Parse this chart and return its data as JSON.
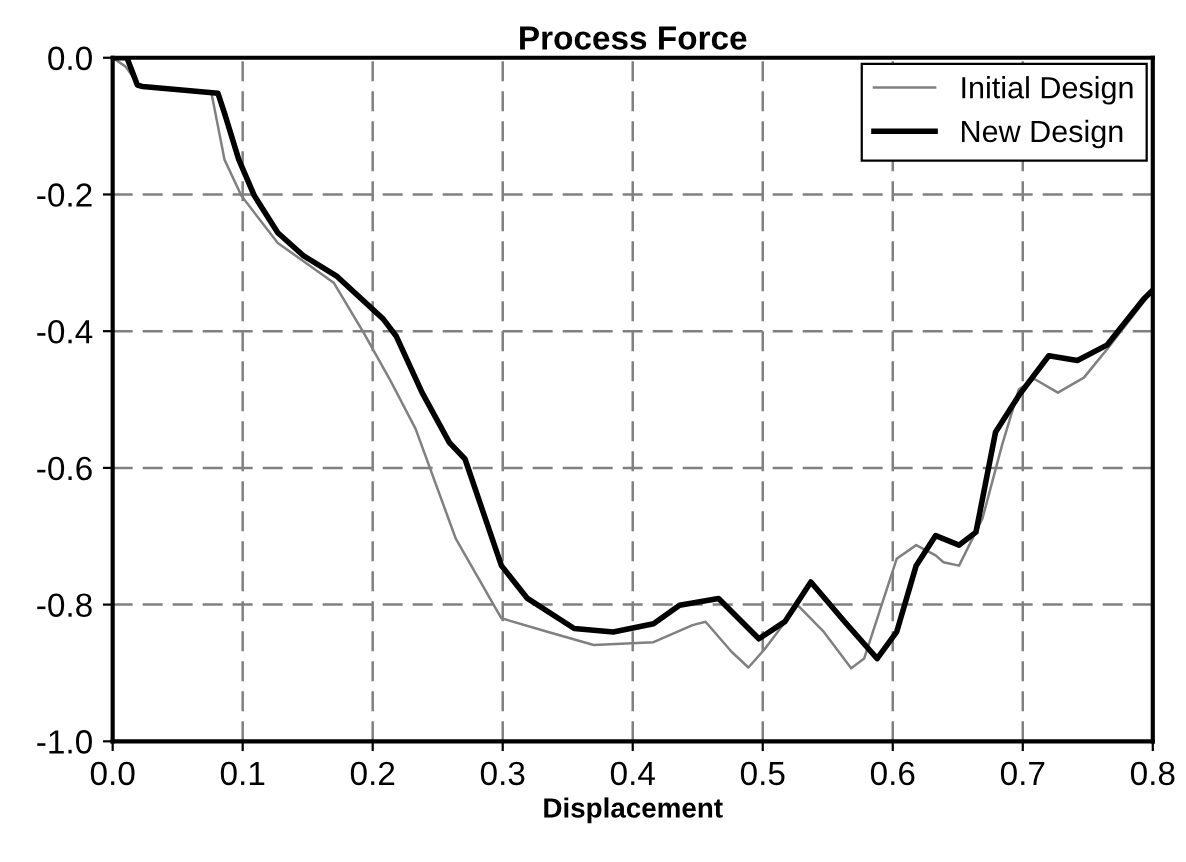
{
  "chart_data": {
    "type": "line",
    "title": "Process Force",
    "xlabel": "Displacement",
    "xlim": [
      0,
      0.8
    ],
    "ylim": [
      -1.0,
      0.0
    ],
    "xticks": [
      {
        "value": 0,
        "label": "0.0"
      },
      0.1,
      0.2,
      0.3,
      0.4,
      0.5,
      0.6,
      0.7,
      0.8
    ],
    "yticks": [
      {
        "value": -1.0,
        "label": "-1.0"
      },
      -0.8,
      -0.6,
      -0.4,
      -0.2,
      {
        "value": 0,
        "label": "0.0"
      }
    ],
    "grid": true,
    "legend": "top right",
    "marker": "none",
    "series": [
      {
        "name": "Initial Design",
        "color": "#808080",
        "x": [
          0,
          0.01,
          0.02,
          0.076,
          0.086,
          0.099,
          0.127,
          0.17,
          0.193,
          0.213,
          0.233,
          0.264,
          0.299,
          0.335,
          0.37,
          0.416,
          0.446,
          0.456,
          0.476,
          0.489,
          0.502,
          0.527,
          0.547,
          0.568,
          0.578,
          0.603,
          0.618,
          0.633,
          0.639,
          0.651,
          0.669,
          0.684,
          0.697,
          0.709,
          0.727,
          0.747,
          0.765,
          0.8
        ],
        "values": [
          0,
          -0.013,
          -0.04,
          -0.052,
          -0.149,
          -0.202,
          -0.271,
          -0.329,
          -0.402,
          -0.47,
          -0.543,
          -0.704,
          -0.82,
          -0.84,
          -0.859,
          -0.855,
          -0.83,
          -0.825,
          -0.869,
          -0.892,
          -0.864,
          -0.801,
          -0.84,
          -0.893,
          -0.879,
          -0.733,
          -0.713,
          -0.728,
          -0.738,
          -0.743,
          -0.674,
          -0.567,
          -0.485,
          -0.47,
          -0.49,
          -0.468,
          -0.426,
          -0.34
        ]
      },
      {
        "name": "New Design",
        "color": "#000000",
        "x": [
          0,
          0.011,
          0.019,
          0.023,
          0.081,
          0.086,
          0.097,
          0.109,
          0.127,
          0.147,
          0.172,
          0.208,
          0.218,
          0.238,
          0.259,
          0.271,
          0.299,
          0.319,
          0.355,
          0.385,
          0.416,
          0.436,
          0.466,
          0.497,
          0.517,
          0.537,
          0.563,
          0.588,
          0.603,
          0.618,
          0.633,
          0.651,
          0.664,
          0.679,
          0.697,
          0.72,
          0.742,
          0.765,
          0.793,
          0.8
        ],
        "values": [
          0,
          0,
          -0.04,
          -0.042,
          -0.052,
          -0.081,
          -0.149,
          -0.202,
          -0.256,
          -0.29,
          -0.319,
          -0.382,
          -0.407,
          -0.49,
          -0.563,
          -0.587,
          -0.743,
          -0.791,
          -0.835,
          -0.84,
          -0.828,
          -0.801,
          -0.791,
          -0.85,
          -0.825,
          -0.767,
          -0.825,
          -0.879,
          -0.84,
          -0.743,
          -0.699,
          -0.713,
          -0.694,
          -0.548,
          -0.494,
          -0.436,
          -0.443,
          -0.42,
          -0.353,
          -0.34
        ]
      }
    ]
  }
}
